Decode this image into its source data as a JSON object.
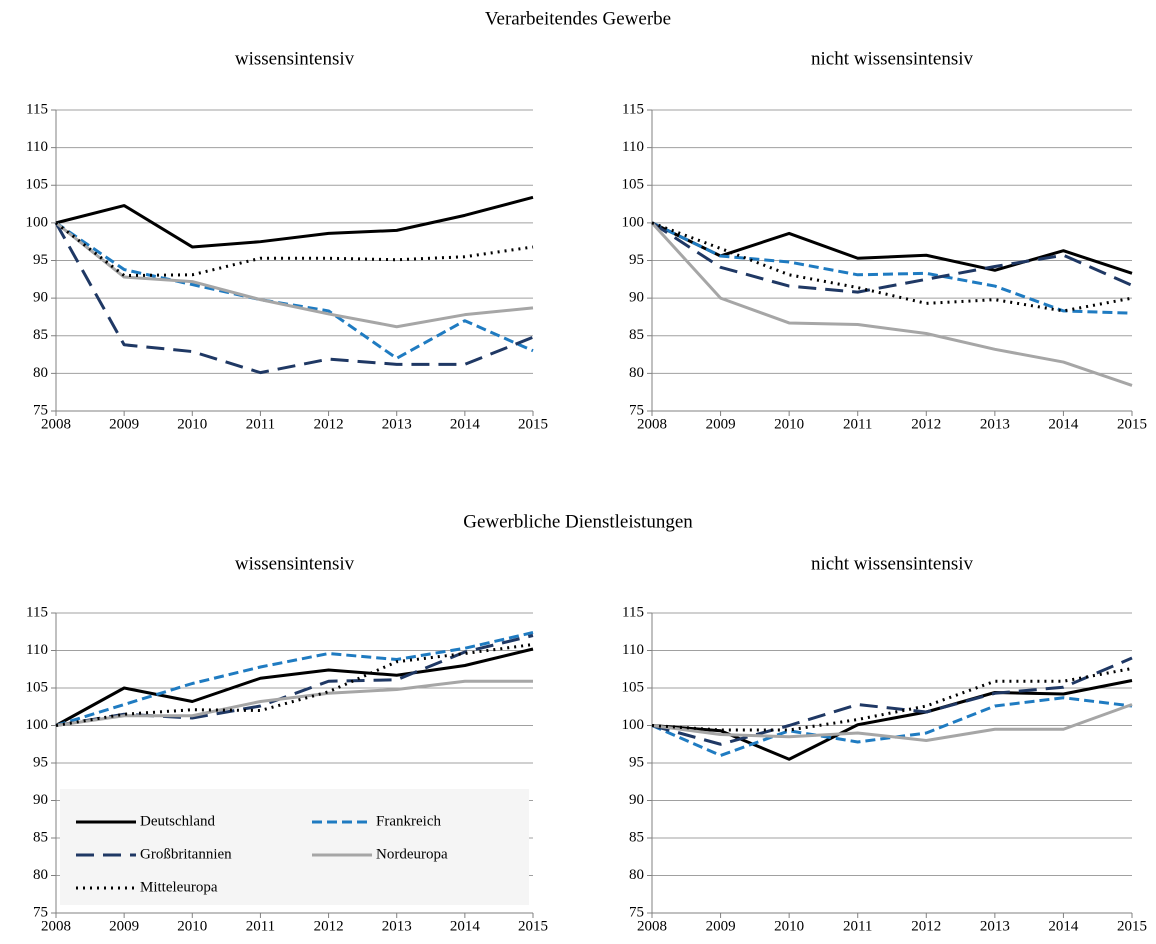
{
  "sections": [
    "Verarbeitendes Gewerbe",
    "Gewerbliche Dienstleistungen"
  ],
  "chart_data": [
    {
      "type": "line",
      "title": "wissensintensiv",
      "x": [
        2008,
        2009,
        2010,
        2011,
        2012,
        2013,
        2014,
        2015
      ],
      "xlim": [
        2008,
        2015
      ],
      "xticks": [
        2008,
        2009,
        2010,
        2011,
        2012,
        2013,
        2014,
        2015
      ],
      "ylim": [
        75,
        115
      ],
      "yticks": [
        75,
        80,
        85,
        90,
        95,
        100,
        105,
        110,
        115
      ],
      "grid": true,
      "series": [
        {
          "name": "Deutschland",
          "color": "#000000",
          "style": "solid",
          "values": [
            100,
            102.3,
            96.8,
            97.5,
            98.6,
            99.0,
            101.0,
            103.4
          ]
        },
        {
          "name": "Frankreich",
          "color": "#1f7bc1",
          "style": "dashed",
          "values": [
            100,
            93.8,
            91.8,
            89.8,
            88.3,
            82.0,
            87.0,
            83.0
          ]
        },
        {
          "name": "Großbritannien",
          "color": "#1f3864",
          "style": "longdash",
          "values": [
            100,
            83.8,
            82.9,
            80.1,
            81.9,
            81.2,
            81.2,
            84.8
          ]
        },
        {
          "name": "Nordeuropa",
          "color": "#a6a6a6",
          "style": "solid",
          "values": [
            100,
            92.8,
            92.2,
            89.8,
            87.9,
            86.2,
            87.8,
            88.7
          ]
        },
        {
          "name": "Mitteleuropa",
          "color": "#000000",
          "style": "dotted",
          "values": [
            100,
            93.0,
            93.1,
            95.3,
            95.3,
            95.1,
            95.5,
            96.8
          ]
        }
      ]
    },
    {
      "type": "line",
      "title": "nicht wissensintensiv",
      "x": [
        2008,
        2009,
        2010,
        2011,
        2012,
        2013,
        2014,
        2015
      ],
      "xlim": [
        2008,
        2015
      ],
      "xticks": [
        2008,
        2009,
        2010,
        2011,
        2012,
        2013,
        2014,
        2015
      ],
      "ylim": [
        75,
        115
      ],
      "yticks": [
        75,
        80,
        85,
        90,
        95,
        100,
        105,
        110,
        115
      ],
      "grid": true,
      "series": [
        {
          "name": "Deutschland",
          "color": "#000000",
          "style": "solid",
          "values": [
            100,
            95.6,
            98.6,
            95.3,
            95.7,
            93.7,
            96.3,
            93.3
          ]
        },
        {
          "name": "Frankreich",
          "color": "#1f7bc1",
          "style": "dashed",
          "values": [
            100,
            95.6,
            94.8,
            93.1,
            93.3,
            91.6,
            88.3,
            88.0
          ]
        },
        {
          "name": "Großbritannien",
          "color": "#1f3864",
          "style": "longdash",
          "values": [
            100,
            94.1,
            91.6,
            90.8,
            92.5,
            94.2,
            95.7,
            91.7
          ]
        },
        {
          "name": "Nordeuropa",
          "color": "#a6a6a6",
          "style": "solid",
          "values": [
            100,
            90.0,
            86.7,
            86.5,
            85.3,
            83.2,
            81.5,
            78.4
          ]
        },
        {
          "name": "Mitteleuropa",
          "color": "#000000",
          "style": "dotted",
          "values": [
            100,
            96.6,
            93.1,
            91.4,
            89.3,
            89.8,
            88.3,
            90.0
          ]
        }
      ]
    },
    {
      "type": "line",
      "title": "wissensintensiv",
      "x": [
        2008,
        2009,
        2010,
        2011,
        2012,
        2013,
        2014,
        2015
      ],
      "xlim": [
        2008,
        2015
      ],
      "xticks": [
        2008,
        2009,
        2010,
        2011,
        2012,
        2013,
        2014,
        2015
      ],
      "ylim": [
        75,
        115
      ],
      "yticks": [
        75,
        80,
        85,
        90,
        95,
        100,
        105,
        110,
        115
      ],
      "grid": true,
      "legend": "lower left",
      "series": [
        {
          "name": "Deutschland",
          "color": "#000000",
          "style": "solid",
          "values": [
            100,
            105.0,
            103.2,
            106.3,
            107.4,
            106.7,
            108.0,
            110.2
          ]
        },
        {
          "name": "Frankreich",
          "color": "#1f7bc1",
          "style": "dashed",
          "values": [
            100,
            102.8,
            105.6,
            107.8,
            109.6,
            108.8,
            110.3,
            112.4
          ]
        },
        {
          "name": "Großbritannien",
          "color": "#1f3864",
          "style": "longdash",
          "values": [
            100,
            101.5,
            101.0,
            102.6,
            105.9,
            106.1,
            109.8,
            112.0
          ]
        },
        {
          "name": "Nordeuropa",
          "color": "#a6a6a6",
          "style": "solid",
          "values": [
            100,
            101.3,
            101.3,
            103.2,
            104.3,
            104.8,
            105.9,
            105.9
          ]
        },
        {
          "name": "Mitteleuropa",
          "color": "#000000",
          "style": "dotted",
          "values": [
            100,
            101.5,
            102.1,
            102.0,
            104.5,
            108.5,
            109.6,
            110.8
          ]
        }
      ]
    },
    {
      "type": "line",
      "title": "nicht wissensintensiv",
      "x": [
        2008,
        2009,
        2010,
        2011,
        2012,
        2013,
        2014,
        2015
      ],
      "xlim": [
        2008,
        2015
      ],
      "xticks": [
        2008,
        2009,
        2010,
        2011,
        2012,
        2013,
        2014,
        2015
      ],
      "ylim": [
        75,
        115
      ],
      "yticks": [
        75,
        80,
        85,
        90,
        95,
        100,
        105,
        110,
        115
      ],
      "grid": true,
      "series": [
        {
          "name": "Deutschland",
          "color": "#000000",
          "style": "solid",
          "values": [
            100,
            99.3,
            95.5,
            100.1,
            101.8,
            104.4,
            104.2,
            106.0
          ]
        },
        {
          "name": "Frankreich",
          "color": "#1f7bc1",
          "style": "dashed",
          "values": [
            100,
            96.0,
            99.3,
            97.8,
            99.0,
            102.6,
            103.7,
            102.6
          ]
        },
        {
          "name": "Großbritannien",
          "color": "#1f3864",
          "style": "longdash",
          "values": [
            100,
            97.5,
            100.0,
            102.8,
            101.8,
            104.3,
            105.1,
            109.0
          ]
        },
        {
          "name": "Nordeuropa",
          "color": "#a6a6a6",
          "style": "solid",
          "values": [
            100,
            98.8,
            98.5,
            99.0,
            98.0,
            99.5,
            99.5,
            102.8
          ]
        },
        {
          "name": "Mitteleuropa",
          "color": "#000000",
          "style": "dotted",
          "values": [
            100,
            99.4,
            99.4,
            100.8,
            102.6,
            105.9,
            105.9,
            107.6
          ]
        }
      ]
    }
  ]
}
